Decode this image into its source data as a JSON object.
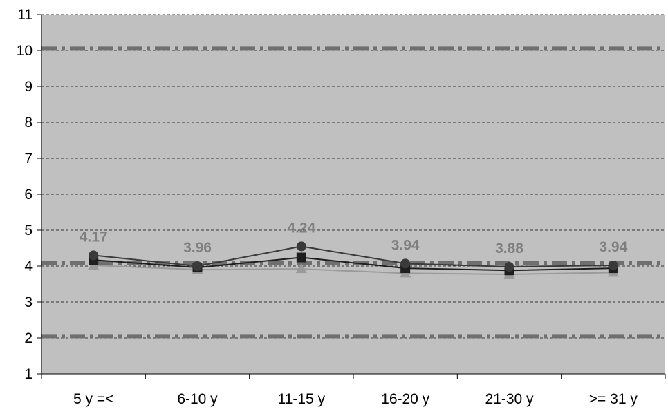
{
  "chart_data": {
    "type": "line",
    "title": "",
    "xlabel": "",
    "ylabel": "",
    "ylim": [
      1,
      11
    ],
    "yticks": [
      1,
      2,
      3,
      4,
      5,
      6,
      7,
      8,
      9,
      10,
      11
    ],
    "grid": true,
    "legend": "none",
    "categories": [
      "5 y =<",
      "6-10 y",
      "11-15 y",
      "16-20 y",
      "21-30 y",
      ">= 31 y"
    ],
    "series": [
      {
        "values": [
          4.3,
          4.0,
          4.55,
          4.07,
          3.98,
          4.02
        ],
        "marker": "circle",
        "color": "#3a3a3a"
      },
      {
        "values": [
          4.17,
          3.96,
          4.24,
          3.94,
          3.88,
          3.94
        ],
        "marker": "square",
        "color": "#1e1e1e"
      },
      {
        "values": [
          4.02,
          3.9,
          3.92,
          3.8,
          3.77,
          3.82
        ],
        "marker": "triangle",
        "color": "#9a9a9a"
      }
    ],
    "data_labels": [
      "4.17",
      "3.96",
      "4.24",
      "3.94",
      "3.88",
      "3.94"
    ],
    "reference_lines": [
      10.05,
      4.08,
      2.05
    ],
    "colors": {
      "plot_background": "#c0c0c0",
      "grid": "#333333",
      "reference_line": "#6f6f6f",
      "data_label": "#7f7f7f"
    }
  }
}
